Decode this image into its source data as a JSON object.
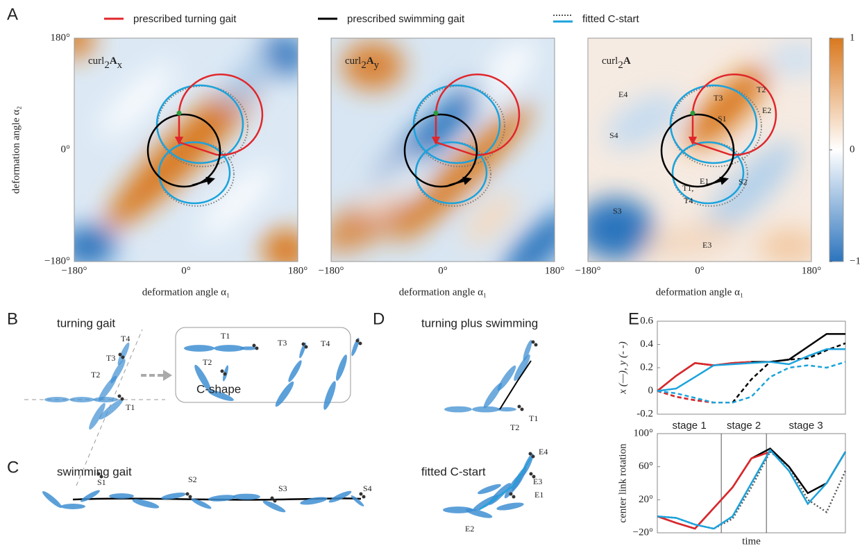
{
  "panel_a": {
    "label": "A",
    "legend": [
      "prescribed turning gait",
      "prescribed swimming gait",
      "fitted C-start"
    ],
    "maps": [
      {
        "op": "curl",
        "sub": "2",
        "vec": "A",
        "comp": "x"
      },
      {
        "op": "curl",
        "sub": "2",
        "vec": "A",
        "comp": "y"
      },
      {
        "op": "curl",
        "sub": "2",
        "vec": "A"
      }
    ],
    "lim": [
      -180,
      180
    ],
    "ticks": [
      {
        "value": -180,
        "label": "−180°"
      },
      {
        "value": 0,
        "label": "0°"
      },
      {
        "value": 180,
        "label": "180°"
      }
    ],
    "xlabel": "deformation angle α₁",
    "ylabel": "deformation angle α₂",
    "colorbar": {
      "lim": [
        -1,
        1
      ],
      "ticks": [
        1,
        0,
        {
          "value": -1,
          "label": "−1"
        }
      ]
    },
    "points": [
      "T1,",
      "T2",
      "T3",
      "T4",
      "E1,",
      "E2",
      "E3",
      "E4",
      "S1",
      "S2",
      "S3",
      "S4"
    ]
  },
  "panel_b": {
    "label": "B",
    "title": "turning gait",
    "points": [
      "T1",
      "T2",
      "T3",
      "T4"
    ],
    "inset_points": [
      "T1",
      "T2",
      "T3",
      "T4"
    ],
    "inset_caption": "C-shape"
  },
  "panel_c": {
    "label": "C",
    "title": "swimming gait",
    "points": [
      "S1",
      "S2",
      "S3",
      "S4"
    ]
  },
  "panel_d": {
    "label": "D",
    "title": "turning plus swimming",
    "points": [
      "T1",
      "T2"
    ],
    "title2": "fitted C-start",
    "points2": [
      "E1",
      "E2",
      "E3",
      "E4"
    ]
  },
  "panel_e": {
    "label": "E"
  },
  "chart_data": [
    {
      "type": "line",
      "ylabel": "x (—), y (- -)",
      "x": [
        0,
        0.1,
        0.2,
        0.3,
        0.4,
        0.5,
        0.6,
        0.7,
        0.8,
        0.9,
        1
      ],
      "xlim": [
        0,
        1
      ],
      "ylim": [
        -0.2,
        0.6
      ],
      "yticks": [
        -0.2,
        0,
        0.2,
        0.4,
        0.6
      ],
      "series": [
        {
          "color": "#000000",
          "dash": "solid",
          "values": [
            0,
            0.13,
            0.24,
            0.22,
            0.24,
            0.25,
            0.25,
            0.27,
            0.38,
            0.49,
            0.49
          ]
        },
        {
          "color": "#000000",
          "dash": "dashed",
          "values": [
            0,
            -0.05,
            -0.08,
            -0.1,
            -0.1,
            0.1,
            0.25,
            0.27,
            0.28,
            0.35,
            0.41
          ]
        },
        {
          "color": "#e0262b",
          "dash": "solid",
          "values": [
            0,
            0.13,
            0.24,
            0.22,
            0.24,
            0.25,
            null,
            null,
            null,
            null,
            null
          ]
        },
        {
          "color": "#e0262b",
          "dash": "dashed",
          "values": [
            0,
            -0.05,
            -0.08,
            -0.1,
            -0.1,
            null,
            null,
            null,
            null,
            null,
            null
          ]
        },
        {
          "color": "#1ba3dc",
          "dash": "solid",
          "values": [
            0,
            0.02,
            0.12,
            0.22,
            0.23,
            0.24,
            0.25,
            0.23,
            0.3,
            0.36,
            0.36
          ]
        },
        {
          "color": "#1ba3dc",
          "dash": "dashed",
          "values": [
            0,
            -0.02,
            -0.06,
            -0.1,
            -0.1,
            -0.05,
            0.12,
            0.2,
            0.22,
            0.2,
            0.25
          ]
        }
      ]
    },
    {
      "type": "line",
      "xlabel": "time",
      "ylabel": "center link rotation",
      "x": [
        0,
        0.1,
        0.2,
        0.3,
        0.4,
        0.5,
        0.6,
        0.7,
        0.8,
        0.9,
        1
      ],
      "xlim": [
        0,
        1
      ],
      "ylim": [
        -20,
        100
      ],
      "yticks": [
        {
          "value": -20,
          "label": "−20°"
        },
        {
          "value": 20,
          "label": "20°"
        },
        {
          "value": 60,
          "label": "60°"
        },
        {
          "value": 100,
          "label": "100°"
        }
      ],
      "annotations": [
        "stage 1",
        "stage 2",
        "stage 3"
      ],
      "stage_bounds": [
        0.34,
        0.58
      ],
      "series": [
        {
          "color": "#555555",
          "dash": "dotted",
          "values": [
            0,
            -2,
            -10,
            -15,
            -3,
            35,
            78,
            60,
            20,
            5,
            55
          ]
        },
        {
          "color": "#000000",
          "dash": "solid",
          "values": [
            0,
            -8,
            -15,
            10,
            35,
            70,
            82,
            60,
            28,
            40,
            78
          ]
        },
        {
          "color": "#e0262b",
          "dash": "solid",
          "values": [
            0,
            -8,
            -15,
            10,
            35,
            70,
            78,
            null,
            null,
            null,
            null
          ]
        },
        {
          "color": "#1ba3dc",
          "dash": "solid",
          "values": [
            0,
            -2,
            -10,
            -15,
            0,
            40,
            80,
            55,
            15,
            40,
            78
          ]
        }
      ]
    }
  ]
}
